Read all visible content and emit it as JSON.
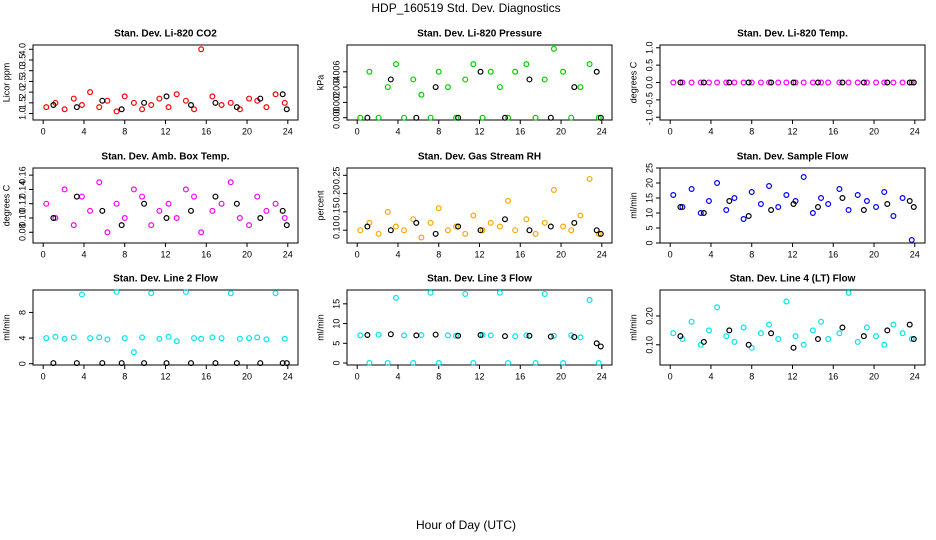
{
  "title": "HDP_160519  Std. Dev. Diagnostics",
  "xlabel": "Hour of Day (UTC)",
  "chart_data": [
    {
      "type": "scatter",
      "title": "Stan. Dev. Li-820 CO2",
      "ylabel": "Licor ppm",
      "xlim": [
        -1,
        25
      ],
      "xticks": [
        0,
        4,
        8,
        12,
        16,
        20,
        24
      ],
      "ylim": [
        0.7,
        4.2
      ],
      "yticks": [
        {
          "value": 1,
          "label": "1.0"
        },
        {
          "value": 1.5,
          "label": "1.5"
        },
        {
          "value": 2,
          "label": "2.0"
        },
        {
          "value": 2.5,
          "label": "2.5"
        },
        {
          "value": 3,
          "label": "3.0"
        },
        {
          "value": 3.5,
          "label": "3.5"
        },
        {
          "value": 4,
          "label": "4.0"
        }
      ],
      "series": [
        {
          "color": "#ff0000",
          "x": [
            0.3,
            1.2,
            2.1,
            3.0,
            3.8,
            4.6,
            5.5,
            6.3,
            7.2,
            8.0,
            8.9,
            9.7,
            10.6,
            11.4,
            12.3,
            13.1,
            14.0,
            14.8,
            15.5,
            16.6,
            17.5,
            18.4,
            19.3,
            20.2,
            21.0,
            21.9,
            22.8,
            23.7
          ],
          "values": [
            1.3,
            1.5,
            1.2,
            1.7,
            1.4,
            2.0,
            1.3,
            1.6,
            1.1,
            1.8,
            1.5,
            1.2,
            1.4,
            1.7,
            1.3,
            1.9,
            1.6,
            1.2,
            4.0,
            1.8,
            1.4,
            1.5,
            1.2,
            1.7,
            1.6,
            1.3,
            1.9,
            1.5
          ]
        },
        {
          "color": "#000000",
          "x": [
            1.0,
            3.3,
            5.8,
            7.7,
            9.9,
            12.1,
            14.5,
            16.9,
            19.0,
            21.3,
            23.5,
            23.9
          ],
          "values": [
            1.4,
            1.3,
            1.6,
            1.2,
            1.5,
            1.8,
            1.4,
            1.5,
            1.3,
            1.7,
            1.9,
            1.2
          ]
        }
      ]
    },
    {
      "type": "scatter",
      "title": "Stan. Dev. Li-820 Pressure",
      "ylabel": "kPa",
      "xlim": [
        -1,
        25
      ],
      "xticks": [
        0,
        4,
        8,
        12,
        16,
        20,
        24
      ],
      "ylim": [
        -0.0003,
        0.0095
      ],
      "yticks": [
        {
          "value": 0,
          "label": "0.000"
        },
        {
          "value": 0.002,
          "label": "0.002"
        },
        {
          "value": 0.004,
          "label": "0.004"
        },
        {
          "value": 0.006,
          "label": "0.006"
        }
      ],
      "series": [
        {
          "color": "#00cc00",
          "x": [
            0.3,
            1.2,
            2.1,
            3.0,
            3.8,
            4.6,
            5.5,
            6.3,
            7.2,
            8.0,
            8.9,
            9.7,
            10.6,
            11.4,
            12.3,
            13.1,
            14.0,
            14.8,
            15.5,
            16.6,
            17.5,
            18.4,
            19.3,
            20.2,
            21.0,
            21.9,
            22.8,
            23.7
          ],
          "values": [
            0,
            0.006,
            0,
            0.004,
            0.007,
            0,
            0.005,
            0.003,
            0,
            0.006,
            0.004,
            0,
            0.005,
            0.007,
            0,
            0.006,
            0.004,
            0,
            0.006,
            0.007,
            0,
            0.005,
            0.009,
            0.006,
            0,
            0.004,
            0.007,
            0
          ]
        },
        {
          "color": "#000000",
          "x": [
            1.0,
            3.3,
            5.8,
            7.7,
            9.9,
            12.1,
            14.5,
            16.9,
            19.0,
            21.3,
            23.5,
            23.9
          ],
          "values": [
            0,
            0.005,
            0,
            0.004,
            0,
            0.006,
            0,
            0.005,
            0,
            0.004,
            0.006,
            0
          ]
        }
      ]
    },
    {
      "type": "scatter",
      "title": "Stan. Dev. Li-820 Temp.",
      "ylabel": "degrees C",
      "xlim": [
        -1,
        25
      ],
      "xticks": [
        0,
        4,
        8,
        12,
        16,
        20,
        24
      ],
      "ylim": [
        -1.08,
        1.08
      ],
      "yticks": [
        {
          "value": -1,
          "label": "-1.0"
        },
        {
          "value": -0.5,
          "label": "-0.5"
        },
        {
          "value": 0,
          "label": "0.0"
        },
        {
          "value": 0.5,
          "label": "0.5"
        },
        {
          "value": 1,
          "label": "1.0"
        }
      ],
      "series": [
        {
          "color": "#ff00ff",
          "x": [
            0.3,
            1.2,
            2.1,
            3.0,
            3.8,
            4.6,
            5.5,
            6.3,
            7.2,
            8.0,
            8.9,
            9.7,
            10.6,
            11.4,
            12.3,
            13.1,
            14.0,
            14.8,
            15.5,
            16.6,
            17.5,
            18.4,
            19.3,
            20.2,
            21.0,
            21.9,
            22.8,
            23.7
          ],
          "values": [
            0,
            0,
            0,
            0,
            0,
            0,
            0,
            0,
            0,
            0,
            0,
            0,
            0,
            0,
            0,
            0,
            0,
            0,
            0,
            0,
            0,
            0,
            0,
            0,
            0,
            0,
            0,
            0
          ]
        },
        {
          "color": "#000000",
          "x": [
            1.0,
            3.3,
            5.8,
            7.7,
            9.9,
            12.1,
            14.5,
            16.9,
            19.0,
            21.3,
            23.5,
            23.9
          ],
          "values": [
            0,
            0,
            0,
            0,
            0,
            0,
            0,
            0,
            0,
            0,
            0,
            0
          ]
        }
      ]
    },
    {
      "type": "scatter",
      "title": "Stan. Dev. Amb. Box Temp.",
      "ylabel": "degrees C",
      "xlim": [
        -1,
        25
      ],
      "xticks": [
        0,
        4,
        8,
        12,
        16,
        20,
        24
      ],
      "ylim": [
        0.065,
        0.17
      ],
      "yticks": [
        {
          "value": 0.08,
          "label": "0.08"
        },
        {
          "value": 0.1,
          "label": "0.10"
        },
        {
          "value": 0.12,
          "label": "0.12"
        },
        {
          "value": 0.14,
          "label": "0.14"
        },
        {
          "value": 0.16,
          "label": "0.16"
        }
      ],
      "series": [
        {
          "color": "#ff00ff",
          "x": [
            0.3,
            1.2,
            2.1,
            3.0,
            3.8,
            4.6,
            5.5,
            6.3,
            7.2,
            8.0,
            8.9,
            9.7,
            10.6,
            11.4,
            12.3,
            13.1,
            14.0,
            14.8,
            15.5,
            16.6,
            17.5,
            18.4,
            19.3,
            20.2,
            21.0,
            21.9,
            22.8,
            23.7
          ],
          "values": [
            0.12,
            0.1,
            0.14,
            0.09,
            0.13,
            0.11,
            0.15,
            0.08,
            0.12,
            0.1,
            0.14,
            0.13,
            0.09,
            0.11,
            0.12,
            0.1,
            0.14,
            0.13,
            0.08,
            0.11,
            0.12,
            0.15,
            0.1,
            0.09,
            0.13,
            0.11,
            0.12,
            0.1
          ]
        },
        {
          "color": "#000000",
          "x": [
            1.0,
            3.3,
            5.8,
            7.7,
            9.9,
            12.1,
            14.5,
            16.9,
            19.0,
            21.3,
            23.5,
            23.9
          ],
          "values": [
            0.1,
            0.13,
            0.11,
            0.09,
            0.12,
            0.1,
            0.11,
            0.13,
            0.12,
            0.1,
            0.11,
            0.09
          ]
        }
      ]
    },
    {
      "type": "scatter",
      "title": "Stan. Dev. Gas Stream RH",
      "ylabel": "percent",
      "xlim": [
        -1,
        25
      ],
      "xticks": [
        0,
        4,
        8,
        12,
        16,
        20,
        24
      ],
      "ylim": [
        0.065,
        0.27
      ],
      "yticks": [
        {
          "value": 0.1,
          "label": "0.10"
        },
        {
          "value": 0.15,
          "label": "0.15"
        },
        {
          "value": 0.2,
          "label": "0.20"
        },
        {
          "value": 0.25,
          "label": "0.25"
        }
      ],
      "series": [
        {
          "color": "#ffa500",
          "x": [
            0.3,
            1.2,
            2.1,
            3.0,
            3.8,
            4.6,
            5.5,
            6.3,
            7.2,
            8.0,
            8.9,
            9.7,
            10.6,
            11.4,
            12.3,
            13.1,
            14.0,
            14.8,
            15.5,
            16.6,
            17.5,
            18.4,
            19.3,
            20.2,
            21.0,
            21.9,
            22.8,
            23.7
          ],
          "values": [
            0.1,
            0.12,
            0.09,
            0.15,
            0.11,
            0.1,
            0.13,
            0.08,
            0.12,
            0.16,
            0.1,
            0.11,
            0.09,
            0.14,
            0.1,
            0.12,
            0.11,
            0.18,
            0.1,
            0.13,
            0.09,
            0.12,
            0.21,
            0.11,
            0.1,
            0.14,
            0.24,
            0.09
          ]
        },
        {
          "color": "#000000",
          "x": [
            1.0,
            3.3,
            5.8,
            7.7,
            9.9,
            12.1,
            14.5,
            16.9,
            19.0,
            21.3,
            23.5,
            23.9
          ],
          "values": [
            0.11,
            0.1,
            0.12,
            0.09,
            0.11,
            0.1,
            0.13,
            0.1,
            0.11,
            0.12,
            0.1,
            0.09
          ]
        }
      ]
    },
    {
      "type": "scatter",
      "title": "Stan. Dev. Sample Flow",
      "ylabel": "ml/min",
      "xlim": [
        -1,
        25
      ],
      "xticks": [
        0,
        4,
        8,
        12,
        16,
        20,
        24
      ],
      "ylim": [
        0,
        25
      ],
      "yticks": [
        0,
        5,
        10,
        15,
        20,
        25
      ],
      "series": [
        {
          "color": "#0000ff",
          "x": [
            0.3,
            1.2,
            2.1,
            3.0,
            3.8,
            4.6,
            5.5,
            6.3,
            7.2,
            8.0,
            8.9,
            9.7,
            10.6,
            11.4,
            12.3,
            13.1,
            14.0,
            14.8,
            15.5,
            16.6,
            17.5,
            18.4,
            19.3,
            20.2,
            21.0,
            21.9,
            22.8,
            23.7
          ],
          "values": [
            16,
            12,
            18,
            10,
            14,
            20,
            11,
            15,
            8,
            17,
            13,
            19,
            12,
            16,
            14,
            22,
            10,
            15,
            13,
            18,
            11,
            16,
            14,
            12,
            17,
            9,
            15,
            1
          ]
        },
        {
          "color": "#000000",
          "x": [
            1.0,
            3.3,
            5.8,
            7.7,
            9.9,
            12.1,
            14.5,
            16.9,
            19.0,
            21.3,
            23.5,
            23.9
          ],
          "values": [
            12,
            10,
            14,
            9,
            11,
            13,
            12,
            15,
            11,
            13,
            14,
            12
          ]
        }
      ]
    },
    {
      "type": "scatter",
      "title": "Stan. Dev. Line 2 Flow",
      "ylabel": "ml/min",
      "xlim": [
        -1,
        25
      ],
      "xticks": [
        0,
        4,
        8,
        12,
        16,
        20,
        24
      ],
      "ylim": [
        -0.2,
        11.5
      ],
      "yticks": [
        0,
        4,
        8
      ],
      "series": [
        {
          "color": "#00e5ee",
          "x": [
            0.3,
            1.2,
            2.1,
            3.0,
            3.8,
            4.6,
            5.5,
            6.3,
            7.2,
            8.0,
            8.9,
            9.7,
            10.6,
            11.4,
            12.3,
            13.1,
            14.0,
            14.8,
            15.5,
            16.6,
            17.5,
            18.4,
            19.3,
            20.2,
            21.0,
            21.9,
            22.8,
            23.7
          ],
          "values": [
            4.0,
            4.2,
            3.9,
            4.1,
            10.8,
            4.0,
            4.1,
            3.8,
            11.2,
            4.0,
            1.8,
            4.1,
            11.0,
            3.9,
            4.2,
            3.5,
            11.2,
            4.0,
            3.9,
            4.1,
            4.0,
            11.0,
            3.9,
            4.0,
            4.1,
            3.8,
            11.0,
            3.9
          ]
        },
        {
          "color": "#000000",
          "x": [
            1.0,
            3.3,
            5.8,
            7.7,
            9.9,
            12.1,
            14.5,
            16.9,
            19.0,
            21.3,
            23.5,
            23.9
          ],
          "values": [
            0.1,
            0.1,
            0.1,
            0.1,
            0.1,
            0.1,
            0.1,
            0.1,
            0.1,
            0.1,
            0.1,
            0.1
          ]
        }
      ]
    },
    {
      "type": "scatter",
      "title": "Stan. Dev. Line 3 Flow",
      "ylabel": "ml/min",
      "xlim": [
        -1,
        25
      ],
      "xticks": [
        0,
        4,
        8,
        12,
        16,
        20,
        24
      ],
      "ylim": [
        -0.5,
        18.5
      ],
      "yticks": [
        0,
        5,
        10,
        15
      ],
      "series": [
        {
          "color": "#00e5ee",
          "x": [
            0.3,
            1.2,
            2.1,
            3.0,
            3.8,
            4.6,
            5.5,
            6.3,
            7.2,
            8.0,
            8.9,
            9.7,
            10.6,
            11.4,
            12.3,
            13.1,
            14.0,
            14.8,
            15.5,
            16.6,
            17.5,
            18.4,
            19.3,
            20.2,
            21.0,
            21.9,
            22.8,
            23.7
          ],
          "values": [
            7,
            0,
            7.2,
            0,
            16.5,
            7,
            0,
            7.1,
            17.8,
            0,
            7,
            6.9,
            17.5,
            0,
            7.1,
            7,
            17.8,
            0,
            6.8,
            7,
            0,
            17.5,
            6.9,
            0,
            7,
            6.5,
            16,
            0
          ]
        },
        {
          "color": "#000000",
          "x": [
            1.0,
            3.3,
            5.8,
            7.7,
            9.9,
            12.1,
            14.5,
            16.9,
            19.0,
            21.3,
            23.5,
            23.9
          ],
          "values": [
            7.1,
            7.3,
            7.0,
            7.2,
            6.9,
            7.1,
            6.8,
            6.9,
            6.7,
            6.6,
            5.0,
            4.2
          ]
        }
      ]
    },
    {
      "type": "scatter",
      "title": "Stan. Dev. Line 4 (LT) Flow",
      "ylabel": "ml/min",
      "xlim": [
        -1,
        25
      ],
      "xticks": [
        0,
        4,
        8,
        12,
        16,
        20,
        24
      ],
      "ylim": [
        0.03,
        0.29
      ],
      "yticks": [
        {
          "value": 0.1,
          "label": "0.10"
        },
        {
          "value": 0.2,
          "label": "0.20"
        }
      ],
      "series": [
        {
          "color": "#00e5ee",
          "x": [
            0.3,
            1.2,
            2.1,
            3.0,
            3.8,
            4.6,
            5.5,
            6.3,
            7.2,
            8.0,
            8.9,
            9.7,
            10.6,
            11.4,
            12.3,
            13.1,
            14.0,
            14.8,
            15.5,
            16.6,
            17.5,
            18.4,
            19.3,
            20.2,
            21.0,
            21.9,
            22.8,
            23.7
          ],
          "values": [
            0.14,
            0.12,
            0.18,
            0.1,
            0.15,
            0.23,
            0.13,
            0.11,
            0.16,
            0.09,
            0.14,
            0.17,
            0.12,
            0.25,
            0.13,
            0.1,
            0.15,
            0.18,
            0.12,
            0.14,
            0.28,
            0.11,
            0.16,
            0.13,
            0.1,
            0.17,
            0.14,
            0.12
          ]
        },
        {
          "color": "#000000",
          "x": [
            1.0,
            3.3,
            5.8,
            7.7,
            9.9,
            12.1,
            14.5,
            16.9,
            19.0,
            21.3,
            23.5,
            23.9
          ],
          "values": [
            0.13,
            0.11,
            0.15,
            0.1,
            0.14,
            0.09,
            0.12,
            0.16,
            0.13,
            0.15,
            0.17,
            0.12
          ]
        }
      ]
    }
  ]
}
